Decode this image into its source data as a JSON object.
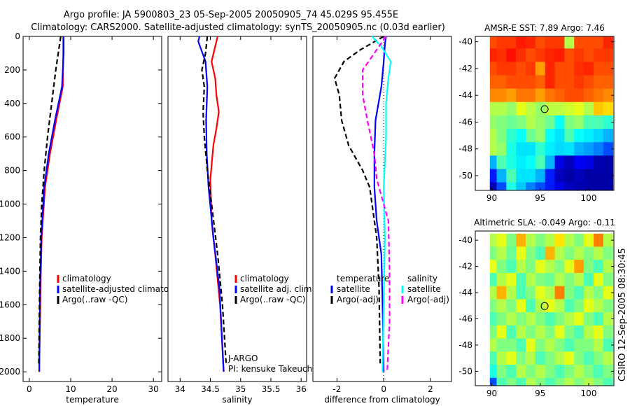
{
  "title_line1": "Argo profile: JA 5900803_23 05-Sep-2005 20050905_74 45.029S 95.455E",
  "title_line2": "Climatology: CARS2000. Satellite-adjusted climatology: synTS_20050905.nc (0.03d earlier)",
  "side_label": "CSIRO 12-Sep-2005 08:30:45",
  "colors": {
    "red": "#ff0000",
    "blue": "#0000ff",
    "black": "#000000",
    "cyan": "#00ffff",
    "magenta": "#ff00ff"
  },
  "chart_data": [
    {
      "type": "line",
      "xlabel": "temperature",
      "ylabel": "",
      "xlim": [
        -1.5,
        32
      ],
      "ylim": [
        2058,
        0
      ],
      "xticks": [
        "0",
        "10",
        "20",
        "30"
      ],
      "xtick_values": [
        0,
        10,
        20,
        30
      ],
      "yticks": [
        "0",
        "200",
        "400",
        "600",
        "800",
        "1000",
        "1200",
        "1400",
        "1600",
        "1800",
        "2000"
      ],
      "ytick_values": [
        0,
        200,
        400,
        600,
        800,
        1000,
        1200,
        1400,
        1600,
        1800,
        2000
      ],
      "legend": [
        "climatology",
        "satellite-adjusted climatology",
        "Argo(..raw -QC)"
      ],
      "series": [
        {
          "name": "climatology",
          "color": "red",
          "dash": false,
          "depth": [
            0,
            100,
            300,
            500,
            700,
            900,
            1200,
            1500,
            2000
          ],
          "x": [
            8.2,
            8.2,
            8.1,
            6.5,
            5.0,
            3.8,
            3.0,
            2.7,
            2.4
          ]
        },
        {
          "name": "satellite-adjusted climatology",
          "color": "blue",
          "dash": false,
          "depth": [
            0,
            100,
            300,
            500,
            700,
            900,
            1200,
            1500,
            2000
          ],
          "x": [
            8.3,
            8.3,
            7.9,
            6.2,
            4.7,
            3.6,
            2.9,
            2.6,
            2.4
          ]
        },
        {
          "name": "Argo(..raw -QC)",
          "color": "black",
          "dash": true,
          "depth": [
            0,
            100,
            200,
            400,
            600,
            800,
            1000,
            1200,
            1500,
            1950
          ],
          "x": [
            7.6,
            7.0,
            6.4,
            5.4,
            4.4,
            3.6,
            3.0,
            2.7,
            2.5,
            2.3
          ]
        }
      ]
    },
    {
      "type": "line",
      "xlabel": "salinity",
      "xlim": [
        33.8,
        36.09
      ],
      "ylim": [
        2058,
        0
      ],
      "xticks": [
        "34",
        "34.5",
        "35",
        "35.5",
        "36"
      ],
      "xtick_values": [
        34,
        34.5,
        35,
        35.5,
        36
      ],
      "legend": [
        "climatology",
        "satellite adj. clim.",
        "Argo(..raw -QC)"
      ],
      "annotations": [
        "J-ARGO",
        "PI: kensuke Takeuchi"
      ],
      "series": [
        {
          "name": "climatology",
          "color": "red",
          "dash": false,
          "depth": [
            0,
            150,
            250,
            350,
            450,
            550,
            650,
            850,
            1100,
            1300,
            1600,
            2000
          ],
          "x": [
            34.62,
            34.52,
            34.58,
            34.6,
            34.64,
            34.6,
            34.55,
            34.5,
            34.52,
            34.58,
            34.66,
            34.72
          ]
        },
        {
          "name": "satellite adj. clim.",
          "color": "blue",
          "dash": false,
          "depth": [
            0,
            30,
            150,
            300,
            500,
            700,
            900,
            1200,
            1500,
            2000
          ],
          "x": [
            34.32,
            34.3,
            34.42,
            34.45,
            34.43,
            34.44,
            34.47,
            34.55,
            34.65,
            34.72
          ]
        },
        {
          "name": "Argo(..raw -QC)",
          "color": "black",
          "dash": true,
          "depth": [
            0,
            100,
            200,
            300,
            450,
            600,
            800,
            1000,
            1300,
            1600,
            1950
          ],
          "x": [
            34.45,
            34.42,
            34.36,
            34.4,
            34.38,
            34.4,
            34.45,
            34.52,
            34.62,
            34.7,
            34.76
          ]
        }
      ]
    },
    {
      "type": "line",
      "xlabel": "difference from climatology",
      "xlim": [
        -3.03,
        2.9
      ],
      "ylim": [
        2058,
        0
      ],
      "xticks": [
        "-2",
        "0",
        "2"
      ],
      "xtick_values": [
        -2,
        0,
        2
      ],
      "legend_titles": [
        "temperature",
        "salinity"
      ],
      "legend": [
        "satellite",
        "Argo(-adj)",
        "satellite",
        "Argo(-adj)"
      ],
      "series": [
        {
          "name": "temperature satellite",
          "color": "blue",
          "dash": false,
          "depth": [
            0,
            50,
            150,
            300,
            500,
            700,
            900,
            1100,
            1300,
            1600,
            2000
          ],
          "x": [
            0.1,
            0.05,
            0.0,
            -0.1,
            -0.35,
            -0.4,
            -0.4,
            -0.3,
            -0.1,
            -0.05,
            0.0
          ]
        },
        {
          "name": "temperature Argo(-adj)",
          "color": "black",
          "dash": true,
          "depth": [
            0,
            80,
            150,
            250,
            350,
            500,
            650,
            800,
            900,
            1000,
            1200,
            1500,
            1950
          ],
          "x": [
            0.0,
            -1.0,
            -1.7,
            -2.1,
            -1.9,
            -1.8,
            -1.5,
            -0.9,
            -0.6,
            -0.5,
            -0.3,
            -0.2,
            -0.15
          ]
        },
        {
          "name": "salinity satellite",
          "color": "cyan",
          "dash": false,
          "depth": [
            0,
            60,
            150,
            250,
            400,
            600,
            900,
            1200,
            1600,
            2000
          ],
          "x": [
            -0.5,
            -0.1,
            0.3,
            0.2,
            0.1,
            0.1,
            0.0,
            0.05,
            0.0,
            -0.05
          ]
        },
        {
          "name": "salinity Argo(-adj)",
          "color": "magenta",
          "dash": true,
          "depth": [
            0,
            100,
            200,
            350,
            500,
            700,
            850,
            1000,
            1100,
            1400,
            1700,
            2000
          ],
          "x": [
            0.1,
            -0.4,
            -0.9,
            -0.9,
            -0.7,
            -0.4,
            -0.3,
            0.0,
            0.2,
            0.25,
            0.25,
            0.15
          ]
        }
      ]
    },
    {
      "type": "heatmap",
      "title": "AMSR-E SST: 7.89 Argo: 7.46",
      "xlim": [
        88.3,
        102.6
      ],
      "ylim": [
        -51.1,
        -39.6
      ],
      "xticks": [
        "90",
        "95",
        "100"
      ],
      "xtick_values": [
        90,
        95,
        100
      ],
      "yticks": [
        "-40",
        "-42",
        "-44",
        "-46",
        "-48",
        "-50"
      ],
      "ytick_values": [
        -40,
        -42,
        -44,
        -46,
        -48,
        -50
      ],
      "grid_lon": [
        90,
        91,
        92,
        93,
        94,
        95,
        96,
        97,
        98,
        99,
        100,
        101,
        102
      ],
      "grid_lat": [
        -40,
        -41,
        -42,
        -43,
        -44,
        -45,
        -46,
        -47,
        -48,
        -49,
        -50,
        -51
      ],
      "values": [
        [
          0.8,
          0.82,
          0.82,
          0.85,
          0.84,
          0.8,
          0.82,
          0.82,
          0.55,
          0.8,
          0.8,
          0.8,
          0.84
        ],
        [
          0.84,
          0.83,
          0.86,
          0.83,
          0.8,
          0.82,
          0.84,
          0.85,
          0.8,
          0.82,
          0.8,
          0.82,
          0.82
        ],
        [
          0.8,
          0.82,
          0.82,
          0.8,
          0.82,
          0.72,
          0.84,
          0.8,
          0.8,
          0.83,
          0.84,
          0.8,
          0.8
        ],
        [
          0.78,
          0.78,
          0.8,
          0.8,
          0.8,
          0.78,
          0.84,
          0.8,
          0.8,
          0.82,
          0.8,
          0.78,
          0.78
        ],
        [
          0.74,
          0.74,
          0.72,
          0.76,
          0.76,
          0.72,
          0.76,
          0.78,
          0.8,
          0.8,
          0.78,
          0.76,
          0.74
        ],
        [
          0.55,
          0.55,
          0.52,
          0.6,
          0.56,
          0.52,
          0.56,
          0.56,
          0.58,
          0.6,
          0.55,
          0.68,
          0.66
        ],
        [
          0.52,
          0.5,
          0.48,
          0.5,
          0.55,
          0.52,
          0.48,
          0.38,
          0.5,
          0.52,
          0.45,
          0.45,
          0.42
        ],
        [
          0.55,
          0.5,
          0.42,
          0.38,
          0.48,
          0.52,
          0.38,
          0.35,
          0.45,
          0.38,
          0.36,
          0.34,
          0.3
        ],
        [
          0.55,
          0.52,
          0.4,
          0.35,
          0.35,
          0.42,
          0.36,
          0.34,
          0.35,
          0.3,
          0.28,
          0.25,
          0.2
        ],
        [
          0.3,
          0.45,
          0.4,
          0.36,
          0.38,
          0.45,
          0.3,
          0.1,
          0.06,
          0.12,
          0.1,
          0.05,
          0.04
        ],
        [
          0.15,
          0.3,
          0.45,
          0.35,
          0.35,
          0.3,
          0.15,
          0.06,
          0.04,
          0.06,
          0.04,
          0.04,
          0.04
        ],
        [
          0.05,
          0.2,
          0.4,
          0.32,
          0.25,
          0.2,
          0.15,
          0.1,
          0.06,
          0.05,
          0.04,
          0.04,
          0.04
        ]
      ],
      "marker": {
        "lon": 95.455,
        "lat": -45.029
      }
    },
    {
      "type": "heatmap",
      "title": "Altimetric SLA: -0.049 Argo: -0.11",
      "xlim": [
        88.3,
        102.6
      ],
      "ylim": [
        -51.1,
        -39.3
      ],
      "xticks": [
        "90",
        "95",
        "100"
      ],
      "xtick_values": [
        90,
        95,
        100
      ],
      "yticks": [
        "-40",
        "-42",
        "-44",
        "-46",
        "-48",
        "-50"
      ],
      "ytick_values": [
        -40,
        -42,
        -44,
        -46,
        -48,
        -50
      ],
      "grid_lon": [
        90,
        91,
        92,
        93,
        94,
        95,
        96,
        97,
        98,
        99,
        100,
        101,
        102
      ],
      "grid_lat": [
        -40,
        -41,
        -42,
        -43,
        -44,
        -45,
        -46,
        -47,
        -48,
        -49,
        -50,
        -51
      ],
      "values": [
        [
          0.55,
          0.6,
          0.5,
          0.7,
          0.55,
          0.5,
          0.55,
          0.65,
          0.55,
          0.5,
          0.6,
          0.75,
          0.55
        ],
        [
          0.5,
          0.55,
          0.48,
          0.6,
          0.5,
          0.45,
          0.7,
          0.55,
          0.5,
          0.55,
          0.5,
          0.55,
          0.5
        ],
        [
          0.6,
          0.5,
          0.45,
          0.55,
          0.5,
          0.6,
          0.55,
          0.5,
          0.6,
          0.72,
          0.5,
          0.45,
          0.55
        ],
        [
          0.45,
          0.55,
          0.6,
          0.45,
          0.55,
          0.5,
          0.48,
          0.55,
          0.5,
          0.55,
          0.45,
          0.6,
          0.5
        ],
        [
          0.55,
          0.7,
          0.55,
          0.45,
          0.5,
          0.6,
          0.55,
          0.75,
          0.5,
          0.45,
          0.55,
          0.5,
          0.6
        ],
        [
          0.5,
          0.55,
          0.5,
          0.6,
          0.45,
          0.55,
          0.6,
          0.55,
          0.45,
          0.5,
          0.6,
          0.55,
          0.5
        ],
        [
          0.45,
          0.5,
          0.55,
          0.5,
          0.55,
          0.5,
          0.45,
          0.5,
          0.55,
          0.6,
          0.5,
          0.45,
          0.55
        ],
        [
          0.5,
          0.6,
          0.45,
          0.55,
          0.5,
          0.55,
          0.5,
          0.6,
          0.5,
          0.45,
          0.55,
          0.6,
          0.5
        ],
        [
          0.55,
          0.5,
          0.5,
          0.45,
          0.6,
          0.5,
          0.55,
          0.5,
          0.45,
          0.5,
          0.5,
          0.55,
          0.45
        ],
        [
          0.45,
          0.55,
          0.6,
          0.5,
          0.55,
          0.45,
          0.5,
          0.55,
          0.6,
          0.5,
          0.45,
          0.5,
          0.55
        ],
        [
          0.4,
          0.5,
          0.45,
          0.55,
          0.5,
          0.55,
          0.5,
          0.45,
          0.5,
          0.55,
          0.5,
          0.45,
          0.5
        ],
        [
          0.2,
          0.45,
          0.5,
          0.45,
          0.55,
          0.5,
          0.45,
          0.5,
          0.55,
          0.5,
          0.55,
          0.5,
          0.45
        ]
      ],
      "marker": {
        "lon": 95.455,
        "lat": -45.029
      }
    }
  ]
}
